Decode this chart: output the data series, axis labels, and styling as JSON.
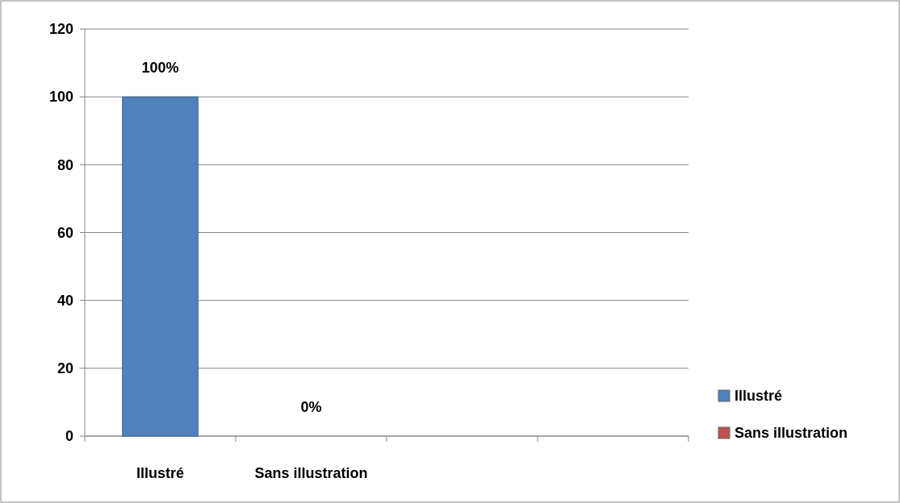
{
  "chart_data": {
    "type": "bar",
    "categories": [
      "Illustré",
      "Sans illustration",
      null,
      null
    ],
    "series": [
      {
        "name": "Illustré",
        "color": "#4f81bd",
        "values": [
          100,
          null,
          null,
          null
        ],
        "value_labels": [
          "100%",
          null,
          null,
          null
        ]
      },
      {
        "name": "Sans illustration",
        "color": "#c0504d",
        "values": [
          null,
          0,
          null,
          null
        ],
        "value_labels": [
          null,
          "0%",
          null,
          null
        ]
      }
    ],
    "ylim": [
      0,
      120
    ],
    "yticks": [
      0,
      20,
      40,
      60,
      80,
      100,
      120
    ],
    "grid": "y",
    "legend": "right"
  }
}
